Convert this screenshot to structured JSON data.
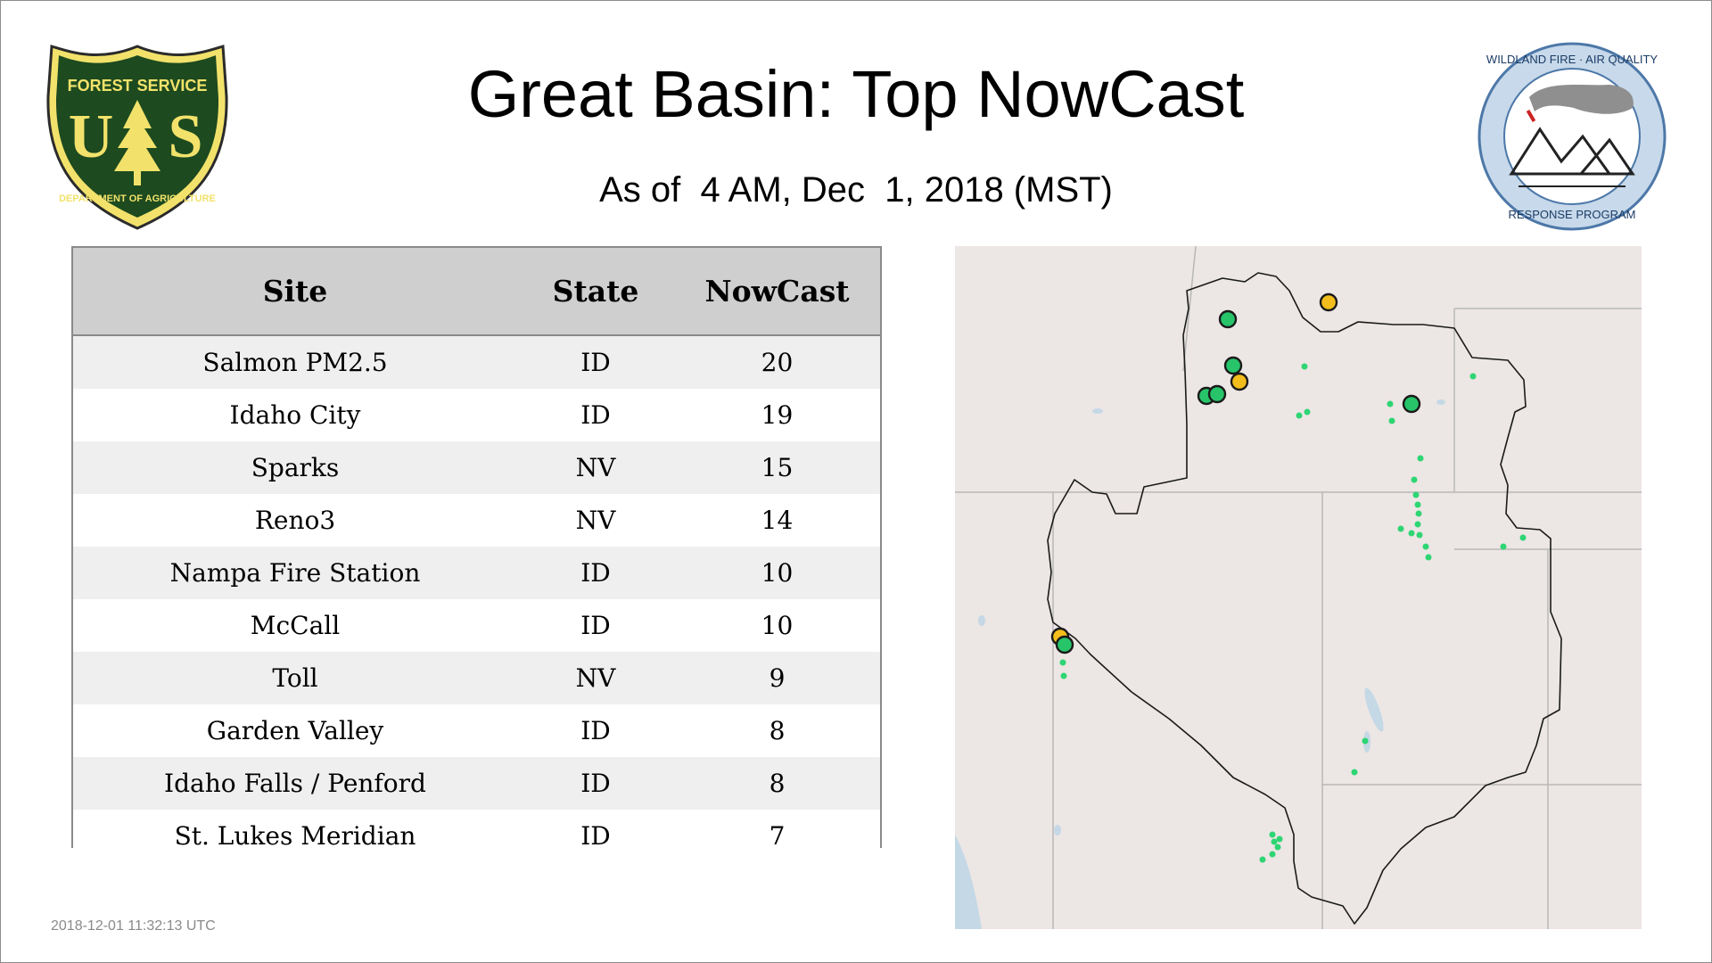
{
  "header": {
    "title": "Great Basin: Top NowCast",
    "subtitle": "As of  4 AM, Dec  1, 2018 (MST)"
  },
  "logos": {
    "forest_service": {
      "top_text": "FOREST SERVICE",
      "letters": "U S",
      "bottom_text": "DEPARTMENT OF AGRICULTURE",
      "icon": "forest-service-shield-icon"
    },
    "wildland": {
      "top_text": "WILDLAND FIRE · AIR QUALITY",
      "bottom_text": "RESPONSE PROGRAM",
      "icon": "wildland-fire-air-quality-seal-icon"
    }
  },
  "table": {
    "columns": [
      "Site",
      "State",
      "NowCast"
    ],
    "rows": [
      {
        "site": "Salmon PM2.5",
        "state": "ID",
        "nowcast": "20"
      },
      {
        "site": "Idaho City",
        "state": "ID",
        "nowcast": "19"
      },
      {
        "site": "Sparks",
        "state": "NV",
        "nowcast": "15"
      },
      {
        "site": "Reno3",
        "state": "NV",
        "nowcast": "14"
      },
      {
        "site": "Nampa Fire Station",
        "state": "ID",
        "nowcast": "10"
      },
      {
        "site": "McCall",
        "state": "ID",
        "nowcast": "10"
      },
      {
        "site": "Toll",
        "state": "NV",
        "nowcast": "9"
      },
      {
        "site": "Garden Valley",
        "state": "ID",
        "nowcast": "8"
      },
      {
        "site": "Idaho Falls / Penford",
        "state": "ID",
        "nowcast": "8"
      },
      {
        "site": "St. Lukes Meridian",
        "state": "ID",
        "nowcast": "7"
      }
    ]
  },
  "timestamp": "2018-12-01 11:32:13 UTC",
  "map": {
    "colors": {
      "land": "#ece6e4",
      "water": "#c4d8e6",
      "good": "#27c46a",
      "moderate": "#f3be1c",
      "small_marker": "#2ed573",
      "boundary": "#1a1a1a",
      "state_line": "#b8b8b8"
    }
  }
}
